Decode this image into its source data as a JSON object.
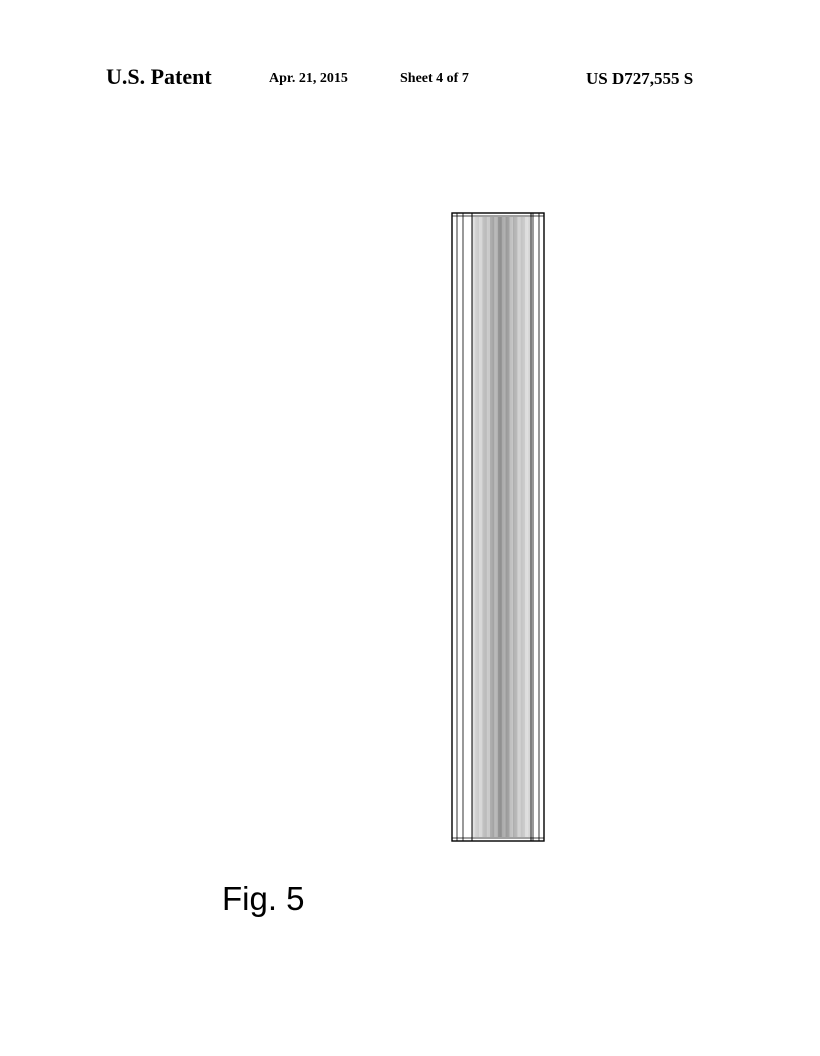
{
  "header": {
    "label": "U.S. Patent",
    "date": "Apr. 21, 2015",
    "sheet": "Sheet 4 of 7",
    "patent_number": "US D727,555 S"
  },
  "figure": {
    "caption": "Fig. 5",
    "drawing": "vertically elongated rectangular bar with dense vertical line shading",
    "colors": {
      "ink": "#000000",
      "paper": "#ffffff"
    }
  }
}
